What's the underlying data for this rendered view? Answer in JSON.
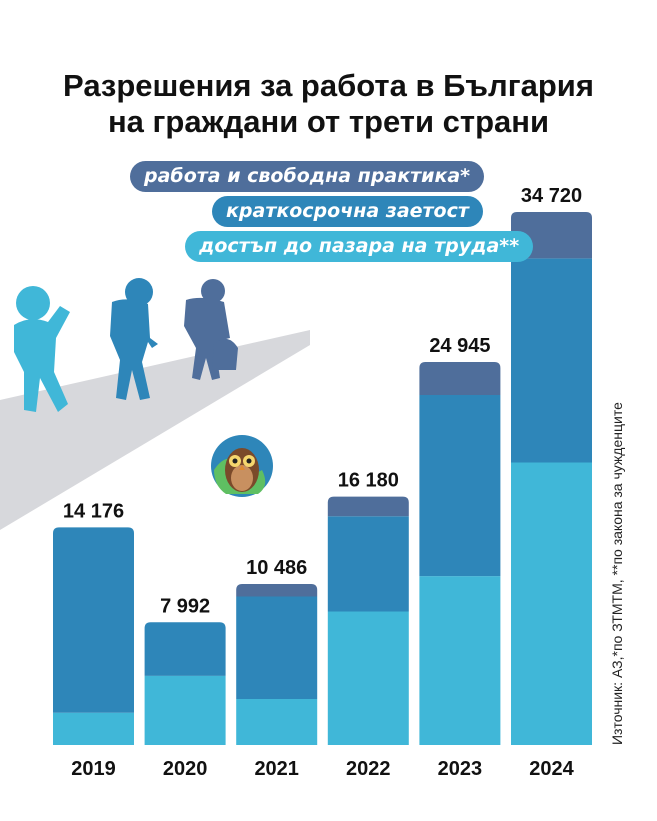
{
  "title_lines": [
    "Разрешения за работа в България",
    "на граждани от трети страни"
  ],
  "source": "Източник: АЗ,*по ЗТМТМ, **по закона за чужденците",
  "colors": {
    "work_practice": "#4f6e9b",
    "short_term": "#2e86b9",
    "labor_access": "#40b7d8",
    "silhouette": "#40b7d8",
    "silhouette_dark": "#4f6e9b",
    "road": "#d7d8dc",
    "text": "#111111"
  },
  "chart_data": {
    "type": "bar",
    "stacked": true,
    "title": "Разрешения за работа в България на граждани от трети страни",
    "categories": [
      "2019",
      "2020",
      "2021",
      "2022",
      "2023",
      "2024"
    ],
    "totals_labels": [
      "14 176",
      "7 992",
      "10 486",
      "16 180",
      "24 945",
      "34 720"
    ],
    "totals": [
      14176,
      7992,
      10486,
      16180,
      24945,
      34720
    ],
    "series": [
      {
        "name": "достъп до пазара на труда**",
        "color": "#40b7d8",
        "values": [
          2100,
          4500,
          3000,
          8700,
          11000,
          18400
        ]
      },
      {
        "name": "краткосрочна заетост",
        "color": "#2e86b9",
        "values": [
          12076,
          3492,
          6676,
          6200,
          11800,
          13300
        ]
      },
      {
        "name": "работа и свободна практика*",
        "color": "#4f6e9b",
        "values": [
          0,
          0,
          810,
          1280,
          2145,
          3020
        ]
      }
    ],
    "legend": [
      {
        "label": "работа и свободна практика*",
        "color": "#4f6e9b"
      },
      {
        "label": "краткосрочна заетост",
        "color": "#2e86b9"
      },
      {
        "label": "достъп до пазара на труда**",
        "color": "#40b7d8"
      }
    ],
    "ylim": [
      0,
      34720
    ],
    "grid": false,
    "legend_position": "top-left"
  }
}
